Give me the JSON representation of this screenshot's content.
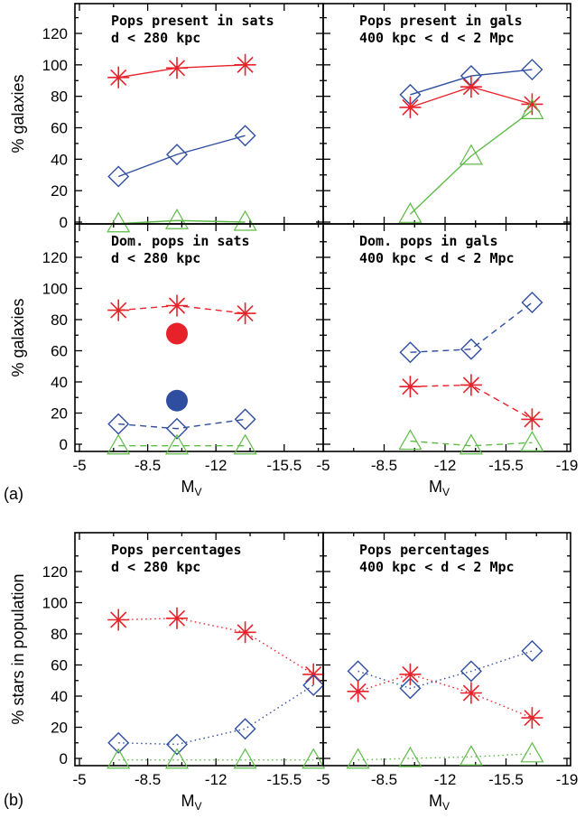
{
  "figure": {
    "label_a": "(a)",
    "label_b": "(b)"
  },
  "colors": {
    "red": "#e8222b",
    "blue": "#2f4ea0",
    "green": "#5dbb46"
  },
  "chart_data": [
    {
      "id": "a_tl",
      "type": "line",
      "title": [
        "Pops present in sats",
        "d < 280 kpc"
      ],
      "xlabel": "",
      "ylabel": "% galaxies",
      "xlim": [
        -5,
        -17.5
      ],
      "ylim": [
        -3,
        135
      ],
      "line_style": "solid",
      "series": [
        {
          "color": "red",
          "marker": "star",
          "x": [
            -7,
            -10,
            -13.5
          ],
          "y": [
            92,
            98,
            100
          ]
        },
        {
          "color": "blue",
          "marker": "diamond",
          "x": [
            -7,
            -10,
            -13.5
          ],
          "y": [
            29,
            43,
            55
          ]
        },
        {
          "color": "green",
          "marker": "triangle",
          "x": [
            -7,
            -10,
            -13.5
          ],
          "y": [
            -1,
            1,
            0
          ]
        }
      ]
    },
    {
      "id": "a_tr",
      "type": "line",
      "title": [
        "Pops present in gals",
        "400 kpc < d < 2 Mpc"
      ],
      "xlabel": "",
      "ylabel": "",
      "xlim": [
        -5,
        -19
      ],
      "ylim": [
        -3,
        135
      ],
      "line_style": "solid",
      "series": [
        {
          "color": "blue",
          "marker": "diamond",
          "x": [
            -10,
            -13.5,
            -17
          ],
          "y": [
            81,
            93,
            97
          ]
        },
        {
          "color": "red",
          "marker": "star",
          "x": [
            -10,
            -13.5,
            -17
          ],
          "y": [
            73,
            86,
            75
          ]
        },
        {
          "color": "green",
          "marker": "triangle",
          "x": [
            -10,
            -13.5,
            -17
          ],
          "y": [
            5,
            42,
            71
          ]
        }
      ]
    },
    {
      "id": "a_bl",
      "type": "line",
      "title": [
        "Dom. pops in sats",
        "d < 280 kpc"
      ],
      "xlabel": "M_V",
      "ylabel": "% galaxies",
      "xlim": [
        -5,
        -17.5
      ],
      "ylim": [
        -3,
        135
      ],
      "xticks": [
        "-5",
        "-8.5",
        "-12",
        "-15.5"
      ],
      "line_style": "dashed",
      "series": [
        {
          "color": "red",
          "marker": "star",
          "x": [
            -7,
            -10,
            -13.5
          ],
          "y": [
            86,
            89,
            84
          ]
        },
        {
          "color": "blue",
          "marker": "diamond",
          "x": [
            -7,
            -10,
            -13.5
          ],
          "y": [
            13,
            10,
            16
          ]
        },
        {
          "color": "green",
          "marker": "triangle",
          "x": [
            -7,
            -10,
            -13.5
          ],
          "y": [
            -1,
            -1,
            -1
          ]
        },
        {
          "color": "red",
          "marker": "dot",
          "x": [
            -10
          ],
          "y": [
            71
          ],
          "noline": true
        },
        {
          "color": "blue",
          "marker": "dot",
          "x": [
            -10
          ],
          "y": [
            28
          ],
          "noline": true
        }
      ]
    },
    {
      "id": "a_br",
      "type": "line",
      "title": [
        "Dom. pops in gals",
        "400 kpc < d < 2 Mpc"
      ],
      "xlabel": "M_V",
      "ylabel": "",
      "xlim": [
        -5,
        -19
      ],
      "ylim": [
        -3,
        135
      ],
      "xticks": [
        "-5",
        "-8.5",
        "-12",
        "-15.5",
        "-19"
      ],
      "line_style": "dashed",
      "series": [
        {
          "color": "blue",
          "marker": "diamond",
          "x": [
            -10,
            -13.5,
            -17
          ],
          "y": [
            59,
            61,
            91
          ]
        },
        {
          "color": "red",
          "marker": "star",
          "x": [
            -10,
            -13.5,
            -17
          ],
          "y": [
            37,
            38,
            16
          ]
        },
        {
          "color": "green",
          "marker": "triangle",
          "x": [
            -10,
            -13.5,
            -17
          ],
          "y": [
            2,
            -1,
            1
          ]
        }
      ]
    },
    {
      "id": "b_l",
      "type": "line",
      "title": [
        "Pops percentages",
        "d < 280 kpc"
      ],
      "xlabel": "M_V",
      "ylabel": "% stars in population",
      "xlim": [
        -5,
        -17.5
      ],
      "ylim": [
        -3,
        135
      ],
      "xticks": [
        "-5",
        "-8.5",
        "-12",
        "-15.5"
      ],
      "line_style": "dotted",
      "series": [
        {
          "color": "red",
          "marker": "star",
          "x": [
            -7,
            -10,
            -13.5,
            -17
          ],
          "y": [
            89,
            90,
            81,
            54
          ]
        },
        {
          "color": "blue",
          "marker": "diamond",
          "x": [
            -7,
            -10,
            -13.5,
            -17
          ],
          "y": [
            10,
            9,
            19,
            47
          ]
        },
        {
          "color": "green",
          "marker": "triangle",
          "x": [
            -7,
            -10,
            -13.5,
            -17
          ],
          "y": [
            -1,
            -1,
            -1,
            -1
          ]
        }
      ]
    },
    {
      "id": "b_r",
      "type": "line",
      "title": [
        "Pops percentages",
        "400 kpc < d < 2 Mpc"
      ],
      "xlabel": "M_V",
      "ylabel": "",
      "xlim": [
        -5,
        -19
      ],
      "ylim": [
        -3,
        135
      ],
      "xticks": [
        "-5",
        "-8.5",
        "-12",
        "-15.5",
        "-19"
      ],
      "line_style": "dotted",
      "series": [
        {
          "color": "blue",
          "marker": "diamond",
          "x": [
            -7,
            -10,
            -13.5,
            -17
          ],
          "y": [
            56,
            45,
            56,
            69
          ]
        },
        {
          "color": "red",
          "marker": "star",
          "x": [
            -7,
            -10,
            -13.5,
            -17
          ],
          "y": [
            43,
            54,
            42,
            26
          ]
        },
        {
          "color": "green",
          "marker": "triangle",
          "x": [
            -7,
            -10,
            -13.5,
            -17
          ],
          "y": [
            -1,
            0,
            1,
            3
          ]
        }
      ]
    }
  ],
  "yticks": [
    "0",
    "20",
    "40",
    "60",
    "80",
    "100",
    "120"
  ]
}
